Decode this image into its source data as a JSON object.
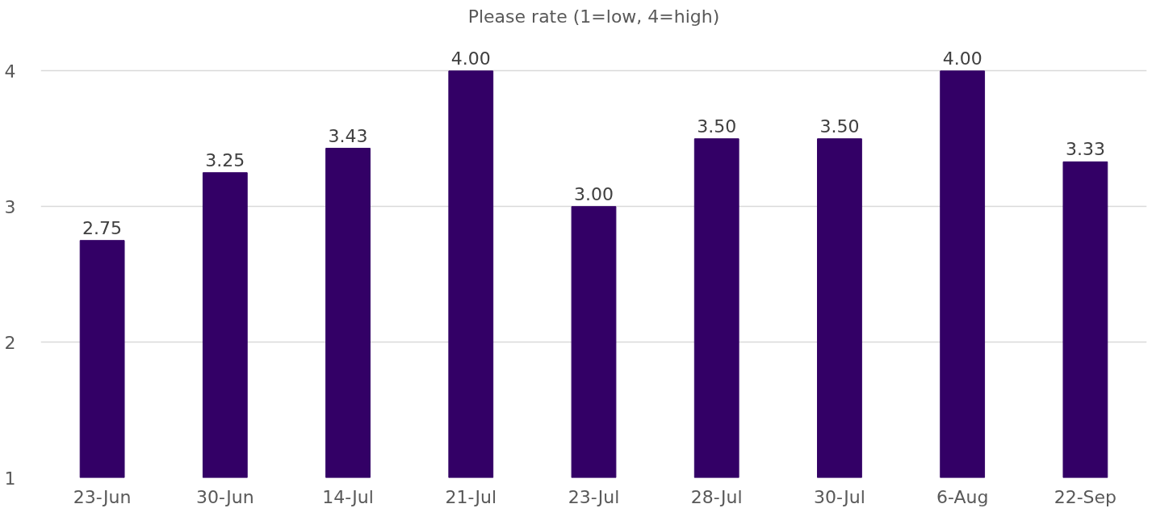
{
  "chart_data": {
    "type": "bar",
    "title": "Please rate (1=low, 4=high)",
    "categories": [
      "23-Jun",
      "30-Jun",
      "14-Jul",
      "21-Jul",
      "23-Jul",
      "28-Jul",
      "30-Jul",
      "6-Aug",
      "22-Sep"
    ],
    "values": [
      2.75,
      3.25,
      3.43,
      4.0,
      3.0,
      3.5,
      3.5,
      4.0,
      3.33
    ],
    "value_labels": [
      "2.75",
      "3.25",
      "3.43",
      "4.00",
      "3.00",
      "3.50",
      "3.50",
      "4.00",
      "3.33"
    ],
    "color": "#330066",
    "ylim": [
      1,
      4
    ],
    "yticks": [
      1,
      2,
      3,
      4
    ],
    "grid": "y"
  }
}
